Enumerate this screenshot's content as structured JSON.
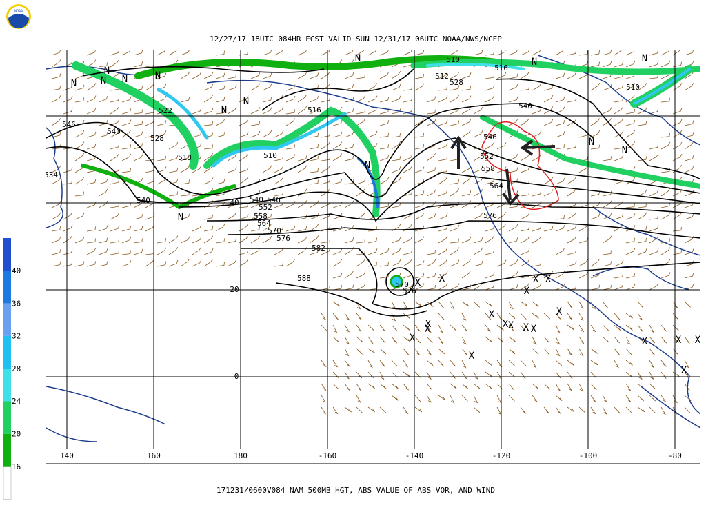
{
  "header": {
    "logo_text": "NOAA",
    "title": "12/27/17 18UTC 084HR FCST VALID SUN 12/31/17 06UTC NOAA/NWS/NCEP"
  },
  "map": {
    "longitude_labels": [
      "140",
      "160",
      "180",
      "-160",
      "-140",
      "-120",
      "-100",
      "-80"
    ],
    "latitude_labels": [
      "40",
      "20",
      "0"
    ],
    "contour_labels": [
      "546",
      "540",
      "528",
      "522",
      "518",
      "540",
      "534",
      "516",
      "510",
      "540",
      "546",
      "552",
      "558",
      "564",
      "570",
      "576",
      "582",
      "588",
      "570",
      "576",
      "510",
      "512",
      "528",
      "516",
      "540",
      "546",
      "552",
      "558",
      "564",
      "576",
      "510"
    ],
    "symbols": [
      "N",
      "N",
      "N",
      "N",
      "N",
      "N",
      "N",
      "N",
      "N",
      "N",
      "N",
      "N",
      "N",
      "N",
      "X",
      "X",
      "X",
      "X",
      "X",
      "X",
      "X",
      "X",
      "X",
      "X",
      "X",
      "X",
      "X",
      "X",
      "X",
      "X",
      "X",
      "X",
      "X"
    ]
  },
  "colorbar": {
    "labels": [
      "40",
      "36",
      "32",
      "28",
      "24",
      "20",
      "16"
    ]
  },
  "footer": {
    "caption": "171231/0600V084 NAM 500MB HGT, ABS VALUE OF ABS VOR, AND WIND"
  }
}
